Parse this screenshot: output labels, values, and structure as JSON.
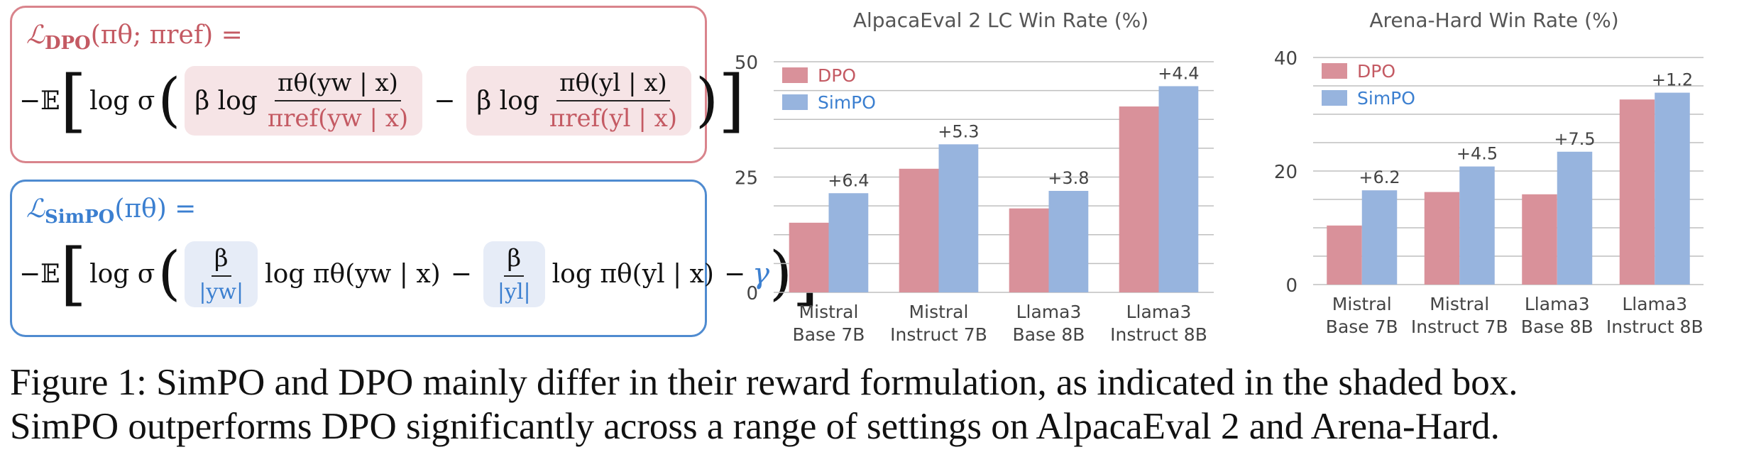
{
  "dpo": {
    "line1": "ℒDPO(πθ; πref) =",
    "lhs": "ℒ",
    "sub": "DPO",
    "args": "(πθ; πref) =",
    "neg_E": "−𝔼",
    "log_sigma": "log σ",
    "beta_log": "β log",
    "term1_num": "πθ(yw | x)",
    "term1_den": "πref(yw | x)",
    "minus": "−",
    "term2_num": "πθ(yl | x)",
    "term2_den": "πref(yl | x)"
  },
  "simpo": {
    "lhs": "ℒ",
    "sub": "SimPO",
    "args": "(πθ) =",
    "neg_E": "−𝔼",
    "log_sigma": "log σ",
    "term1_num": "β",
    "term1_den": "|yw|",
    "term1_rest": "log πθ(yw | x)",
    "minus": "−",
    "term2_num": "β",
    "term2_den": "|yl|",
    "term2_rest": "log πθ(yl | x)",
    "gamma_minus": "−",
    "gamma": "γ"
  },
  "colors": {
    "dpo": "#d9919a",
    "simpo": "#97b4de",
    "gridline": "#bfbfbf"
  },
  "chart_data": [
    {
      "type": "bar",
      "title": "AlpacaEval 2 LC Win Rate (%)",
      "categories": [
        "Mistral\nBase 7B",
        "Mistral\nInstruct 7B",
        "Llama3\nBase 8B",
        "Llama3\nInstruct 8B"
      ],
      "series": [
        {
          "name": "DPO",
          "values": [
            15.1,
            26.8,
            18.2,
            40.3
          ]
        },
        {
          "name": "SimPO",
          "values": [
            21.5,
            32.1,
            22.0,
            44.7
          ]
        }
      ],
      "annotations": [
        "+6.4",
        "+5.3",
        "+3.8",
        "+4.4"
      ],
      "yticks": [
        0,
        25,
        50
      ],
      "ylim": [
        0,
        50
      ],
      "grid": true,
      "legend": "top-left"
    },
    {
      "type": "bar",
      "title": "Arena-Hard Win Rate (%)",
      "categories": [
        "Mistral\nBase 7B",
        "Mistral\nInstruct 7B",
        "Llama3\nBase 8B",
        "Llama3\nInstruct 8B"
      ],
      "series": [
        {
          "name": "DPO",
          "values": [
            10.4,
            16.3,
            15.9,
            32.6
          ]
        },
        {
          "name": "SimPO",
          "values": [
            16.6,
            20.8,
            23.4,
            33.8
          ]
        }
      ],
      "annotations": [
        "+6.2",
        "+4.5",
        "+7.5",
        "+1.2"
      ],
      "yticks": [
        0,
        20,
        40
      ],
      "ylim": [
        0,
        40
      ],
      "grid": true,
      "legend": "top-left"
    }
  ],
  "caption": {
    "line1": "Figure 1: SimPO and DPO mainly differ in their reward formulation, as indicated in the shaded box.",
    "line2": "SimPO outperforms DPO significantly across a range of settings on AlpacaEval 2 and Arena-Hard."
  }
}
